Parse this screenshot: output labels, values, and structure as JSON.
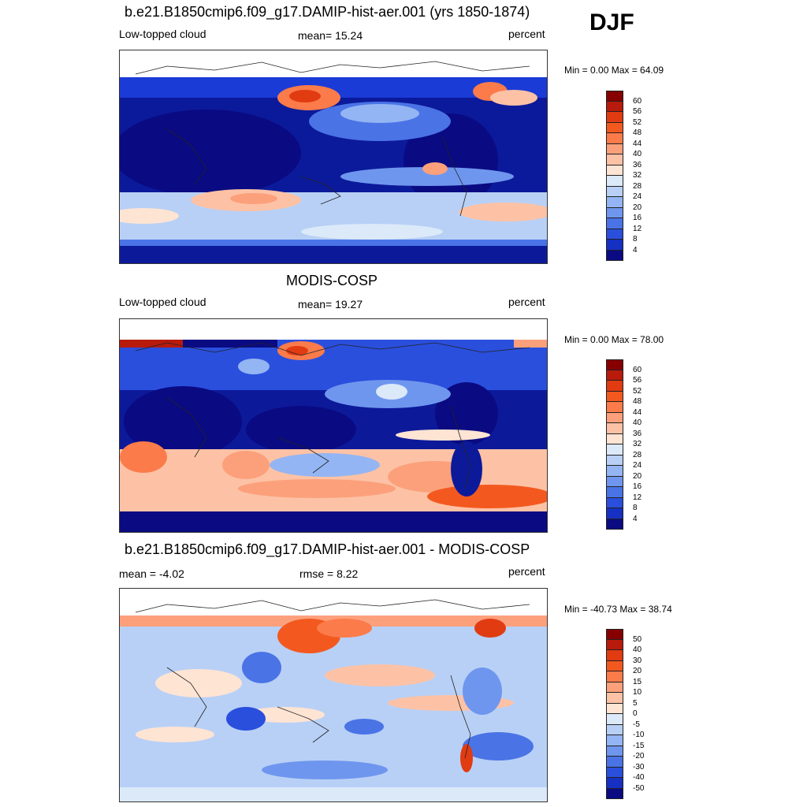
{
  "season": "DJF",
  "panels": [
    {
      "title": "b.e21.B1850cmip6.f09_g17.DAMIP-hist-aer.001 (yrs 1850-1874)",
      "left_label": "Low-topped cloud",
      "center_label": "mean=  15.24",
      "right_label": "percent",
      "minmax": "Min =   0.00 Max =  64.09",
      "colorbar": {
        "colors": [
          "#870000",
          "#b81a0c",
          "#e13b12",
          "#f3591f",
          "#fb7b4a",
          "#fca07c",
          "#fdc2a5",
          "#fee4d3",
          "#dbe9f9",
          "#b8d0f6",
          "#94b5f3",
          "#6f96ee",
          "#4a73e6",
          "#2a4fdd",
          "#1530c2",
          "#0c1a9a",
          "#0a0a82"
        ],
        "labels": [
          "60",
          "56",
          "52",
          "48",
          "44",
          "40",
          "36",
          "32",
          "28",
          "24",
          "20",
          "16",
          "12",
          "8",
          "4"
        ]
      }
    },
    {
      "title": "MODIS-COSP",
      "left_label": "Low-topped cloud",
      "center_label": "mean=  19.27",
      "right_label": "percent",
      "minmax": "Min =   0.00 Max =  78.00",
      "colorbar": {
        "colors": [
          "#870000",
          "#b81a0c",
          "#e13b12",
          "#f3591f",
          "#fb7b4a",
          "#fca07c",
          "#fdc2a5",
          "#fee4d3",
          "#dbe9f9",
          "#b8d0f6",
          "#94b5f3",
          "#6f96ee",
          "#4a73e6",
          "#2a4fdd",
          "#1530c2",
          "#0c1a9a",
          "#0a0a82"
        ],
        "labels": [
          "60",
          "56",
          "52",
          "48",
          "44",
          "40",
          "36",
          "32",
          "28",
          "24",
          "20",
          "16",
          "12",
          "8",
          "4"
        ]
      }
    },
    {
      "title": "b.e21.B1850cmip6.f09_g17.DAMIP-hist-aer.001 - MODIS-COSP",
      "left_label": "mean =  -4.02",
      "center_label": "rmse =   8.22",
      "right_label": "percent",
      "minmax": "Min = -40.73 Max =  38.74",
      "colorbar": {
        "colors": [
          "#870000",
          "#b81a0c",
          "#e13b12",
          "#f3591f",
          "#fb7b4a",
          "#fca07c",
          "#fdc2a5",
          "#fee4d3",
          "#dbe9f9",
          "#b8d0f6",
          "#94b5f3",
          "#6f96ee",
          "#4a73e6",
          "#2a4fdd",
          "#1530c2",
          "#0c1a9a",
          "#0a0a82"
        ],
        "labels": [
          "50",
          "40",
          "30",
          "20",
          "15",
          "10",
          "5",
          "0",
          "-5",
          "-10",
          "-15",
          "-20",
          "-30",
          "-40",
          "-50"
        ]
      }
    }
  ]
}
